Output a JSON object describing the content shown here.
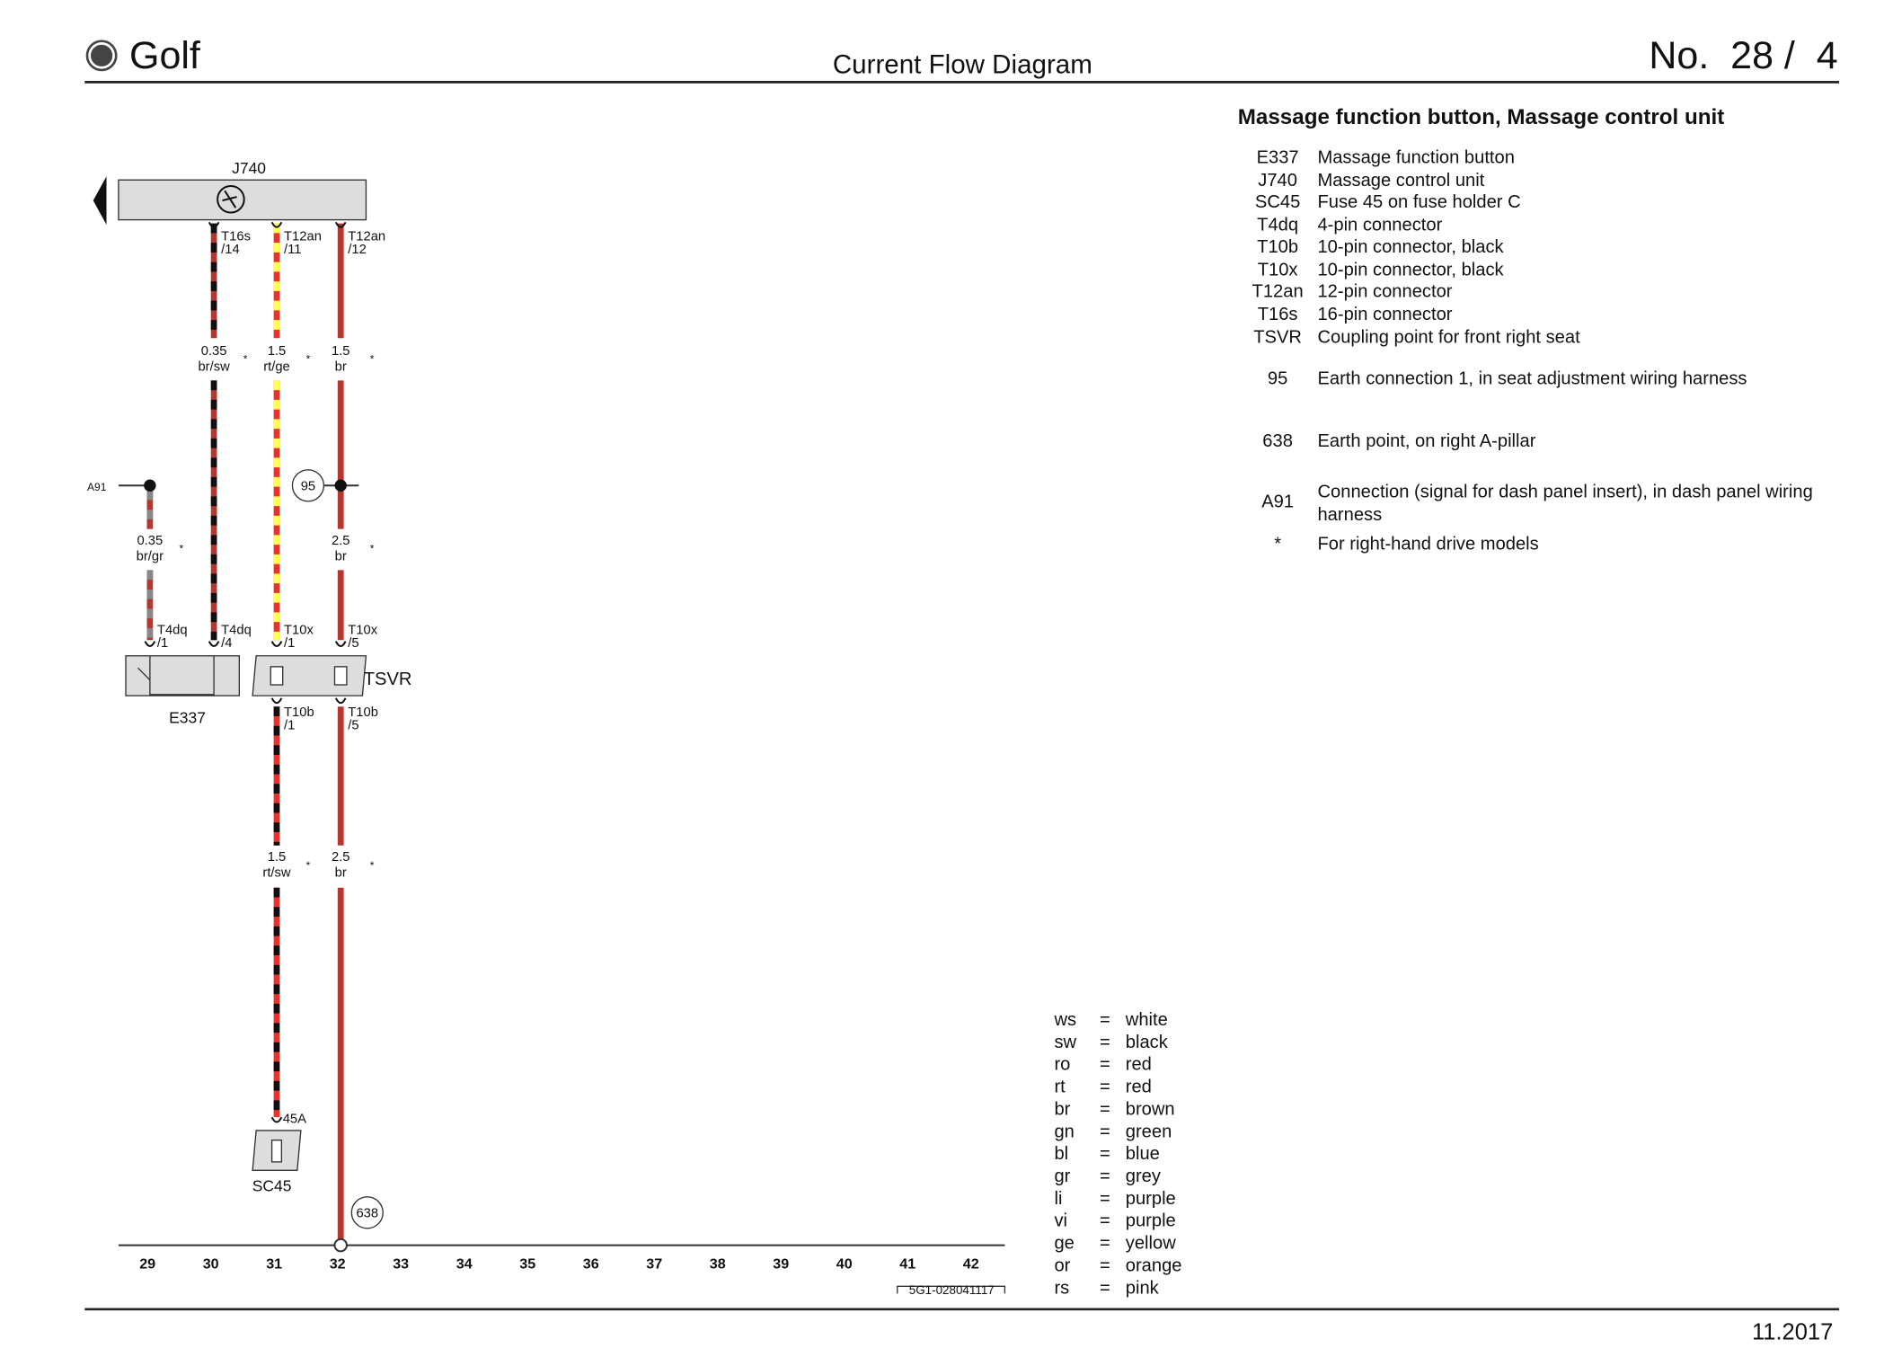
{
  "header": {
    "brand": "Golf",
    "title": "Current Flow Diagram",
    "number": "No.  28 /  4"
  },
  "legend": {
    "title": "Massage function button, Massage control unit",
    "items": [
      {
        "code": "E337",
        "text": "Massage function button"
      },
      {
        "code": "J740",
        "text": "Massage control unit"
      },
      {
        "code": "SC45",
        "text": "Fuse 45 on fuse holder C"
      },
      {
        "code": "T4dq",
        "text": "4-pin connector"
      },
      {
        "code": "T10b",
        "text": "10-pin connector, black"
      },
      {
        "code": "T10x",
        "text": "10-pin connector, black"
      },
      {
        "code": "T12an",
        "text": "12-pin connector"
      },
      {
        "code": "T16s",
        "text": "16-pin connector"
      },
      {
        "code": "TSVR",
        "text": "Coupling point for front right seat"
      },
      {
        "code": "95",
        "text": "Earth connection 1, in seat adjustment wiring harness"
      },
      {
        "code": "638",
        "text": "Earth point, on right A-pillar"
      },
      {
        "code": "A91",
        "text": "Connection (signal for dash panel insert), in dash panel wiring harness"
      },
      {
        "code": "*",
        "text": "For right-hand drive models"
      }
    ]
  },
  "colors": [
    {
      "abbr": "ws",
      "sep": "=",
      "name": "white"
    },
    {
      "abbr": "sw",
      "sep": "=",
      "name": "black"
    },
    {
      "abbr": "ro",
      "sep": "=",
      "name": "red"
    },
    {
      "abbr": "rt",
      "sep": "=",
      "name": "red"
    },
    {
      "abbr": "br",
      "sep": "=",
      "name": "brown"
    },
    {
      "abbr": "gn",
      "sep": "=",
      "name": "green"
    },
    {
      "abbr": "bl",
      "sep": "=",
      "name": "blue"
    },
    {
      "abbr": "gr",
      "sep": "=",
      "name": "grey"
    },
    {
      "abbr": "li",
      "sep": "=",
      "name": "purple"
    },
    {
      "abbr": "vi",
      "sep": "=",
      "name": "purple"
    },
    {
      "abbr": "ge",
      "sep": "=",
      "name": "yellow"
    },
    {
      "abbr": "or",
      "sep": "=",
      "name": "orange"
    },
    {
      "abbr": "rs",
      "sep": "=",
      "name": "pink"
    }
  ],
  "diagram": {
    "asterisk": "*",
    "labels": {
      "j740": "J740",
      "e337": "E337",
      "sc45": "SC45",
      "tsvr": "TSVR",
      "a91": "A91",
      "earth95": "95",
      "earth638": "638"
    },
    "connectors": [
      {
        "name": "T16s",
        "pin": "/14"
      },
      {
        "name": "T12an",
        "pin": "/11"
      },
      {
        "name": "T12an",
        "pin": "/12"
      },
      {
        "name": "T4dq",
        "pin": "/1"
      },
      {
        "name": "T4dq",
        "pin": "/4"
      },
      {
        "name": "T10x",
        "pin": "/1"
      },
      {
        "name": "T10x",
        "pin": "/5"
      },
      {
        "name": "T10b",
        "pin": "/1"
      },
      {
        "name": "T10b",
        "pin": "/5"
      },
      {
        "name": "45A"
      }
    ],
    "wires": [
      {
        "size": "0.35",
        "color": "br/sw"
      },
      {
        "size": "1.5",
        "color": "rt/ge"
      },
      {
        "size": "1.5",
        "color": "br"
      },
      {
        "size": "0.35",
        "color": "br/gr"
      },
      {
        "size": "2.5",
        "color": "br"
      },
      {
        "size": "1.5",
        "color": "rt/sw"
      },
      {
        "size": "2.5",
        "color": "br"
      }
    ],
    "columns": [
      29,
      30,
      31,
      32,
      33,
      34,
      35,
      36,
      37,
      38,
      39,
      40,
      41,
      42
    ],
    "drawing_no": "5G1-028041117"
  },
  "footer": {
    "date": "11.2017"
  }
}
